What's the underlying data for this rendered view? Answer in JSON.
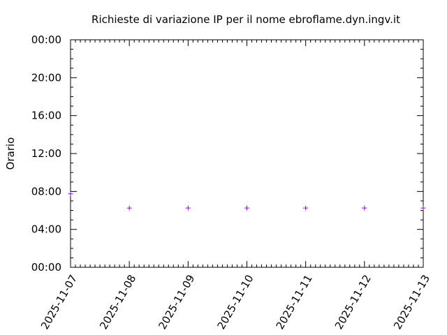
{
  "chart_data": {
    "type": "scatter",
    "title": "Richieste di variazione IP per il nome ebroflame.dyn.ingv.it",
    "xlabel": "",
    "ylabel": "Orario",
    "x_tick_labels": [
      "2025-11-07",
      "2025-11-08",
      "2025-11-09",
      "2025-11-10",
      "2025-11-11",
      "2025-11-12",
      "2025-11-13"
    ],
    "xlim": [
      "2025-11-07",
      "2025-11-13"
    ],
    "y_tick_labels": [
      "00:00",
      "04:00",
      "08:00",
      "12:00",
      "16:00",
      "20:00",
      "00:00"
    ],
    "ylim_hours": [
      0,
      24
    ],
    "grid": false,
    "legend": "none",
    "marker": "+",
    "marker_color": "#9400d3",
    "points": [
      {
        "x": "2025-11-07",
        "y": "07:45"
      },
      {
        "x": "2025-11-08",
        "y": "06:15"
      },
      {
        "x": "2025-11-09",
        "y": "06:15"
      },
      {
        "x": "2025-11-10",
        "y": "06:15"
      },
      {
        "x": "2025-11-11",
        "y": "06:15"
      },
      {
        "x": "2025-11-12",
        "y": "06:15"
      },
      {
        "x": "2025-11-13",
        "y": "06:15"
      }
    ]
  }
}
